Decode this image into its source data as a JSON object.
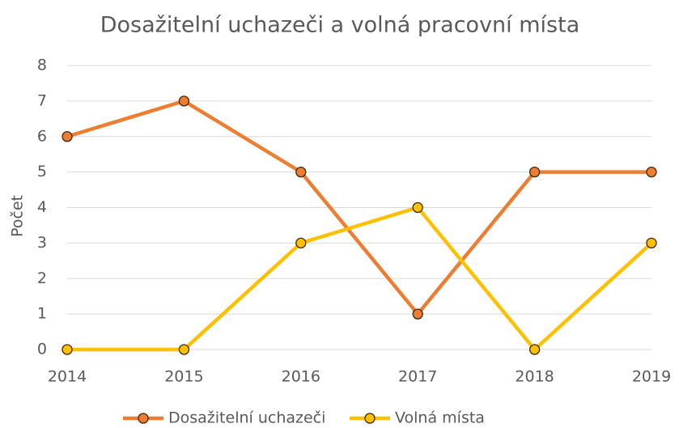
{
  "chart_data": {
    "type": "line",
    "title": "Dosažitelní uchazeči a volná pracovní místa",
    "y_label": "Počet",
    "x": [
      2014,
      2015,
      2016,
      2017,
      2018,
      2019
    ],
    "xlim": [
      2014,
      2019
    ],
    "xticks": [
      2014,
      2015,
      2016,
      2017,
      2018,
      2019
    ],
    "ylim": [
      0,
      8
    ],
    "yticks": [
      0,
      1,
      2,
      3,
      4,
      5,
      6,
      7,
      8
    ],
    "grid": true,
    "legend": "bottom",
    "series": [
      {
        "name": "Dosažitelní uchazeči",
        "color": "#ED7D31",
        "values": [
          6,
          7,
          5,
          1,
          5,
          5
        ]
      },
      {
        "name": "Volná místa",
        "color": "#FFC000",
        "values": [
          0,
          0,
          3,
          4,
          0,
          3
        ]
      }
    ]
  }
}
